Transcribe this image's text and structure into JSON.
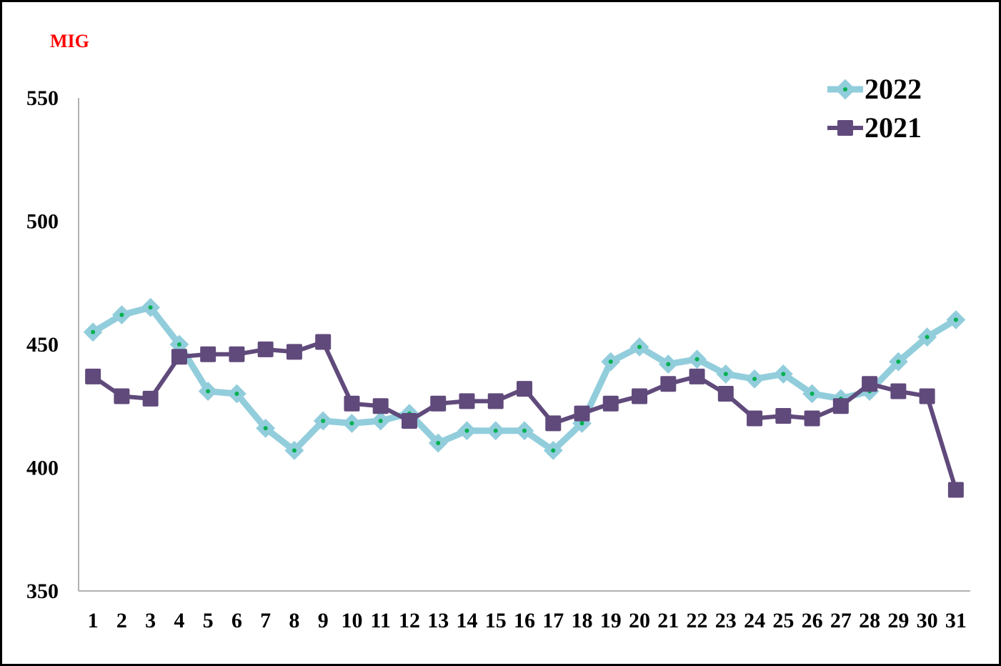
{
  "chart_data": {
    "type": "line",
    "title": "MIG",
    "categories": [
      "1",
      "2",
      "3",
      "4",
      "5",
      "6",
      "7",
      "8",
      "9",
      "10",
      "11",
      "12",
      "13",
      "14",
      "15",
      "16",
      "17",
      "18",
      "19",
      "20",
      "21",
      "22",
      "23",
      "24",
      "25",
      "26",
      "27",
      "28",
      "29",
      "30",
      "31"
    ],
    "series": [
      {
        "name": "2022",
        "color": "#92cddc",
        "marker": "diamond",
        "values": [
          455,
          462,
          465,
          450,
          431,
          430,
          416,
          407,
          419,
          418,
          419,
          422,
          410,
          415,
          415,
          415,
          407,
          418,
          443,
          449,
          442,
          444,
          438,
          436,
          438,
          430,
          428,
          431,
          443,
          453,
          460
        ]
      },
      {
        "name": "2021",
        "color": "#604a7b",
        "marker": "square",
        "values": [
          437,
          429,
          428,
          445,
          446,
          446,
          448,
          447,
          451,
          426,
          425,
          419,
          426,
          427,
          427,
          432,
          418,
          422,
          426,
          429,
          434,
          437,
          430,
          420,
          421,
          420,
          425,
          434,
          431,
          429,
          391
        ]
      }
    ],
    "ylim": [
      350,
      550
    ],
    "yticks": [
      350,
      400,
      450,
      500,
      550
    ],
    "grid": false,
    "legend": "top-right"
  }
}
